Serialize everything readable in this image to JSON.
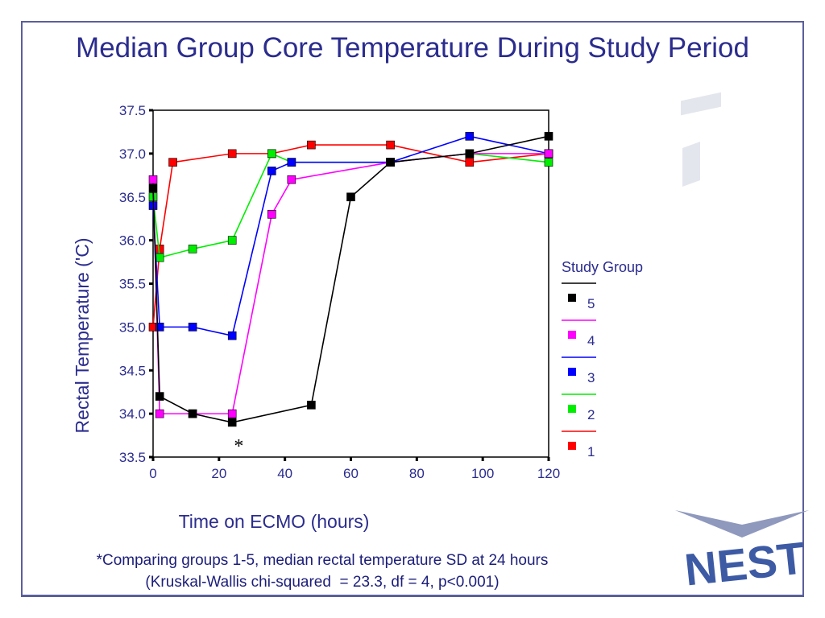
{
  "slide": {
    "title": "Median Group Core Temperature During Study Period",
    "footnote_line1": "*Comparing groups 1-5, median rectal temperature SD at 24 hours",
    "footnote_line2": "(Kruskal-Wallis chi-squared  = 23.3, df = 4, p<0.001)",
    "logo_text": "NEST",
    "colors": {
      "frame": "#5a5f9c",
      "title": "#2b2c8e",
      "axis_label": "#2b2c8e",
      "logo": "#3d5aa4"
    }
  },
  "chart_data": {
    "type": "line",
    "title": "",
    "xlabel": "Time on ECMO (hours)",
    "ylabel": "Rectal Temperature ('C)",
    "xlim": [
      0,
      120
    ],
    "ylim": [
      33.5,
      37.5
    ],
    "xticks": [
      0,
      20,
      40,
      60,
      80,
      100,
      120
    ],
    "yticks": [
      33.5,
      34.0,
      34.5,
      35.0,
      35.5,
      36.0,
      36.5,
      37.0,
      37.5
    ],
    "ytick_labels": [
      "33.5",
      "34.0",
      "34.5",
      "35.0",
      "35.5",
      "36.0",
      "36.5",
      "37.0",
      "37.5"
    ],
    "grid": false,
    "annotation": "*",
    "annotation_x": 26,
    "legend": {
      "title": "Study Group",
      "position": "right"
    },
    "series": [
      {
        "name": "5",
        "color": "#000000",
        "x": [
          0,
          2,
          12,
          24,
          48,
          60,
          72,
          96,
          120
        ],
        "y": [
          36.6,
          34.2,
          34.0,
          33.9,
          34.1,
          36.5,
          36.9,
          37.0,
          37.2
        ]
      },
      {
        "name": "4",
        "color": "#ff00ff",
        "x": [
          0,
          2,
          12,
          24,
          36,
          42,
          72,
          96,
          120
        ],
        "y": [
          36.7,
          34.0,
          34.0,
          34.0,
          36.3,
          36.7,
          36.9,
          37.0,
          37.0
        ]
      },
      {
        "name": "3",
        "color": "#0000ff",
        "x": [
          0,
          2,
          12,
          24,
          36,
          42,
          72,
          96,
          120
        ],
        "y": [
          36.4,
          35.0,
          35.0,
          34.9,
          36.8,
          36.9,
          36.9,
          37.2,
          37.0
        ]
      },
      {
        "name": "2",
        "color": "#00ee00",
        "x": [
          0,
          2,
          12,
          24,
          36,
          42,
          72,
          96,
          120
        ],
        "y": [
          36.5,
          35.8,
          35.9,
          36.0,
          37.0,
          36.9,
          36.9,
          37.0,
          36.9
        ]
      },
      {
        "name": "1",
        "color": "#ff0000",
        "x": [
          0,
          2,
          6,
          24,
          36,
          48,
          72,
          96,
          120
        ],
        "y": [
          35.0,
          35.9,
          36.9,
          37.0,
          37.0,
          37.1,
          37.1,
          36.9,
          37.0
        ]
      }
    ]
  }
}
